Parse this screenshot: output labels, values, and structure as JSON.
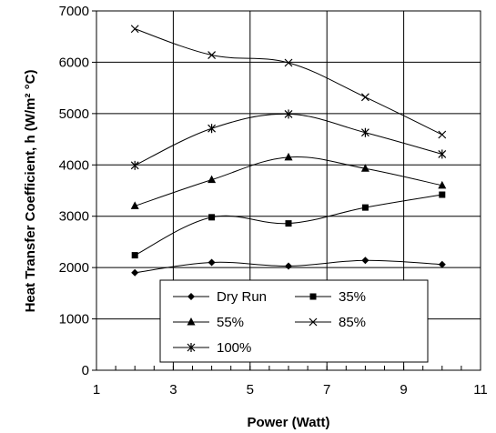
{
  "chart_data": {
    "type": "line",
    "xlabel": "Power (Watt)",
    "ylabel": "Heat Transfer Coefficient, h (W/m² °C)",
    "xlim": [
      1,
      11
    ],
    "ylim": [
      0,
      7000
    ],
    "xticks": [
      1,
      3,
      5,
      7,
      9,
      11
    ],
    "yticks": [
      0,
      1000,
      2000,
      3000,
      4000,
      5000,
      6000,
      7000
    ],
    "grid": true,
    "legend_placement": "bottom-center",
    "x": [
      2,
      4,
      6,
      8,
      10
    ],
    "series": [
      {
        "name": "Dry Run",
        "marker": "diamond",
        "values": [
          1900,
          2100,
          2030,
          2140,
          2060
        ]
      },
      {
        "name": "35%",
        "marker": "square",
        "values": [
          2240,
          2980,
          2860,
          3170,
          3420
        ]
      },
      {
        "name": "55%",
        "marker": "triangle",
        "values": [
          3200,
          3710,
          4150,
          3930,
          3600
        ]
      },
      {
        "name": "85%",
        "marker": "x",
        "values": [
          6650,
          6140,
          5990,
          5320,
          4590
        ]
      },
      {
        "name": "100%",
        "marker": "star",
        "values": [
          3990,
          4710,
          4990,
          4630,
          4210
        ]
      }
    ]
  }
}
